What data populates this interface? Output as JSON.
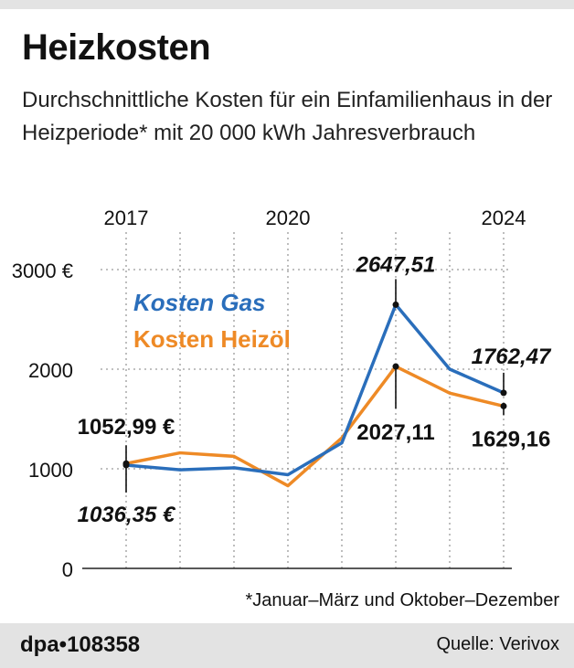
{
  "header": {
    "title": "Heizkosten",
    "subtitle": "Durchschnittliche Kosten für ein Einfamilienhaus in der Heizperiode* mit 20 000 kWh Jahresverbrauch"
  },
  "footnote": "*Januar–März und Oktober–Dezember",
  "footer": {
    "brand": "dpa•108358",
    "source": "Quelle: Verivox"
  },
  "chart_data": {
    "type": "line",
    "x": [
      2017,
      2018,
      2019,
      2020,
      2021,
      2022,
      2023,
      2024
    ],
    "x_tick_labels": [
      "2017",
      "2020",
      "2024"
    ],
    "x_ticks": [
      2017,
      2020,
      2024
    ],
    "ylim": [
      0,
      3000
    ],
    "y_ticks": [
      0,
      1000,
      2000,
      3000
    ],
    "y_tick_labels": [
      "0",
      "1000",
      "2000",
      "3000 €"
    ],
    "grid": "vertical dotted",
    "series": [
      {
        "name": "Kosten Gas",
        "color": "#2a6ebb",
        "values": [
          1036.35,
          990,
          1010,
          940,
          1260,
          2647.51,
          2000,
          1762.47
        ]
      },
      {
        "name": "Kosten Heizöl",
        "color": "#ee8a26",
        "values": [
          1052.99,
          1160,
          1125,
          830,
          1310,
          2027.11,
          1760,
          1629.16
        ]
      }
    ],
    "annotations": [
      {
        "series": 1,
        "index": 0,
        "text": "1052,99 €",
        "style": "bold"
      },
      {
        "series": 0,
        "index": 0,
        "text": "1036,35 €",
        "style": "bold-italic"
      },
      {
        "series": 0,
        "index": 5,
        "text": "2647,51",
        "style": "bold-italic"
      },
      {
        "series": 1,
        "index": 5,
        "text": "2027,11",
        "style": "bold"
      },
      {
        "series": 0,
        "index": 7,
        "text": "1762,47",
        "style": "bold-italic"
      },
      {
        "series": 1,
        "index": 7,
        "text": "1629,16",
        "style": "bold"
      }
    ]
  }
}
